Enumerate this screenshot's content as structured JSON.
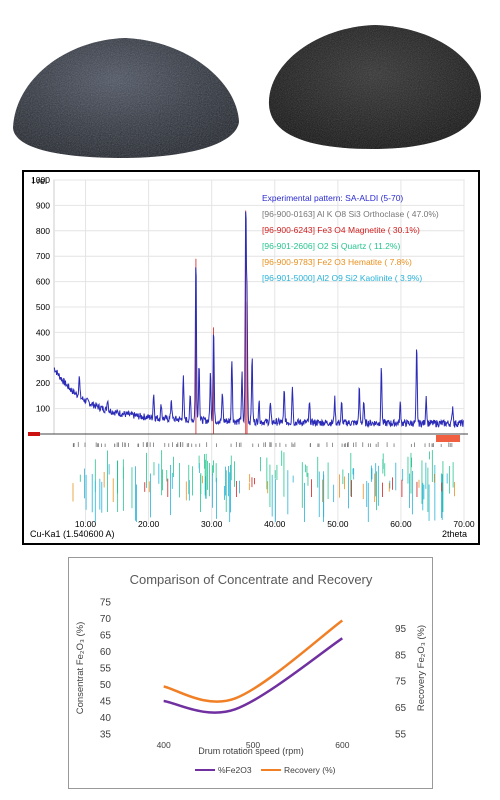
{
  "images": {
    "left": {
      "description": "dark gray granular sample heap (left)"
    },
    "right": {
      "description": "black granular sample heap (right)"
    }
  },
  "colors": {
    "xrd_pattern": "#2b2bb8",
    "legend_experimental": "#2b2bd0",
    "orthoclase": "#777777",
    "magnetite": "#d22020",
    "quartz": "#27c48f",
    "hematite": "#e8901e",
    "kaolinite": "#27b2d8",
    "fe2o3_series": "#7030a0",
    "recovery_series": "#f07f25"
  },
  "chart_data": [
    {
      "type": "line",
      "ylabel_top": "I rel",
      "x_tick_labels": [
        "10.00",
        "20.00",
        "30.00",
        "40.00",
        "50.00",
        "60.00",
        "70.00"
      ],
      "x_axis_end_label": "2theta",
      "y_tick_labels": [
        "100",
        "200",
        "300",
        "400",
        "500",
        "600",
        "700",
        "800",
        "900",
        "1000"
      ],
      "source_label": "Cu-Ka1 (1.540600 A)",
      "xlim": [
        5,
        70
      ],
      "ylim": [
        0,
        1000
      ],
      "legend": [
        "Experimental pattern: SA-ALDI (5-70)",
        "[96-900-0163] Al K O8 Si3  Orthoclase ( 47.0%)",
        "[96-900-6243] Fe3 O4  Magnetite ( 30.1%)",
        "[96-901-2606] O2 Si  Quartz ( 11.2%)",
        "[96-900-9783] Fe2 O3  Hematite ( 7.8%)",
        "[96-901-5000] Al2 O9 Si2  Kaolinite ( 3.9%)"
      ],
      "peaks": [
        {
          "x": 9.0,
          "y": 230
        },
        {
          "x": 13.5,
          "y": 140
        },
        {
          "x": 20.8,
          "y": 160
        },
        {
          "x": 22.0,
          "y": 120
        },
        {
          "x": 23.6,
          "y": 140
        },
        {
          "x": 25.5,
          "y": 220
        },
        {
          "x": 26.6,
          "y": 150
        },
        {
          "x": 27.5,
          "y": 690
        },
        {
          "x": 28.0,
          "y": 280
        },
        {
          "x": 29.8,
          "y": 240
        },
        {
          "x": 30.3,
          "y": 420
        },
        {
          "x": 31.7,
          "y": 160
        },
        {
          "x": 33.2,
          "y": 300
        },
        {
          "x": 34.8,
          "y": 240
        },
        {
          "x": 35.4,
          "y": 880
        },
        {
          "x": 35.6,
          "y": 520
        },
        {
          "x": 36.4,
          "y": 300
        },
        {
          "x": 37.5,
          "y": 130
        },
        {
          "x": 39.3,
          "y": 120
        },
        {
          "x": 41.5,
          "y": 170
        },
        {
          "x": 42.8,
          "y": 190
        },
        {
          "x": 45.5,
          "y": 120
        },
        {
          "x": 49.5,
          "y": 140
        },
        {
          "x": 50.6,
          "y": 120
        },
        {
          "x": 53.4,
          "y": 180
        },
        {
          "x": 54.1,
          "y": 130
        },
        {
          "x": 56.9,
          "y": 260
        },
        {
          "x": 59.9,
          "y": 120
        },
        {
          "x": 62.5,
          "y": 340
        },
        {
          "x": 64.0,
          "y": 150
        },
        {
          "x": 68.2,
          "y": 110
        }
      ]
    },
    {
      "type": "line",
      "title": "Comparison of Concentrate and Recovery",
      "xlabel": "Drum rotation speed (rpm)",
      "ylabel": "Consentrat Fe₂O₃ (%)",
      "ylabel_right": "Recovery Fe₂O₃ (%)",
      "x_ticks": [
        400,
        500,
        600
      ],
      "xlim": [
        350,
        650
      ],
      "ylim": [
        35,
        75
      ],
      "ylim_right": [
        55,
        105
      ],
      "y_ticks": [
        35,
        40,
        45,
        50,
        55,
        60,
        65,
        70,
        75
      ],
      "y_ticks_right": [
        55,
        65,
        75,
        85,
        95
      ],
      "series": [
        {
          "name": "%Fe2O3",
          "axis": "left",
          "x": [
            400,
            480,
            600
          ],
          "values": [
            45,
            42.5,
            64
          ]
        },
        {
          "name": "Recovery (%)",
          "axis": "right",
          "x": [
            400,
            480,
            600
          ],
          "values": [
            73,
            68.5,
            98
          ]
        }
      ]
    }
  ]
}
